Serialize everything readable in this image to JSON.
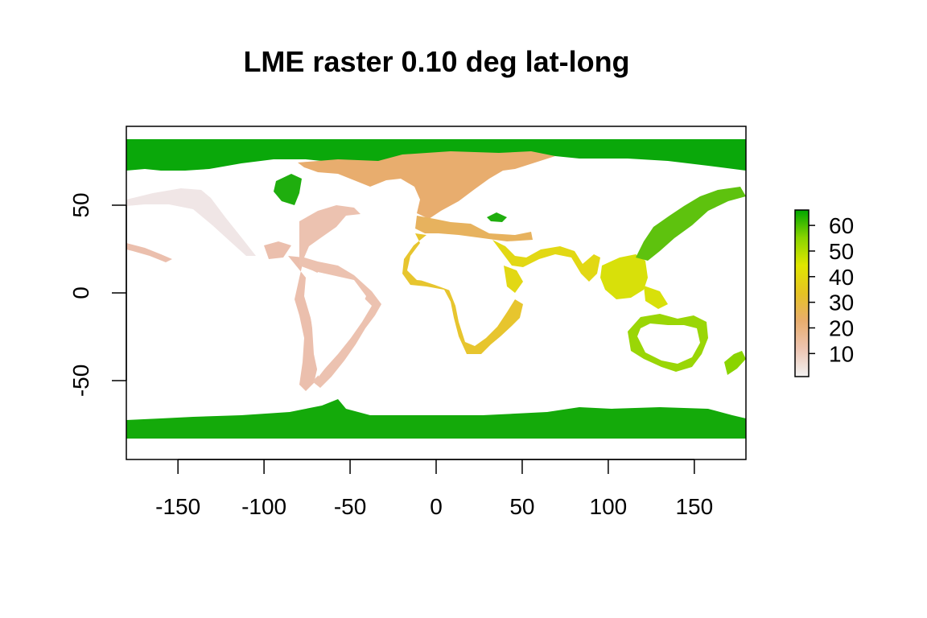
{
  "title": "LME raster 0.10 deg lat-long",
  "map": {
    "x_axis": {
      "range": [
        -180,
        180
      ],
      "ticks": [
        -150,
        -100,
        -50,
        0,
        50,
        100,
        150
      ],
      "tick_labels": [
        "-150",
        "-100",
        "-50",
        "0",
        "50",
        "100",
        "150"
      ]
    },
    "y_axis": {
      "range": [
        -95,
        95
      ],
      "ticks": [
        50,
        0,
        -50
      ],
      "tick_labels": [
        "50",
        "0",
        "-50"
      ]
    }
  },
  "legend": {
    "range": [
      1,
      66
    ],
    "ticks": [
      10,
      20,
      30,
      40,
      50,
      60
    ],
    "tick_labels": [
      "10",
      "20",
      "30",
      "40",
      "50",
      "60"
    ],
    "gradient_colors": [
      "#f2f2f2",
      "#edc4b1",
      "#e8ad6e",
      "#e6c324",
      "#e0e600",
      "#8ad400",
      "#00a600"
    ]
  },
  "colors": {
    "arctic": "#0aa80a",
    "antarctic": "#14aa0a",
    "north_pacific": "#f0e6e6",
    "americas_pacific": "#ebbfad",
    "americas_atlantic": "#ecc2b0",
    "north_atlantic": "#e8ad6e",
    "europe": "#e7b25e",
    "africa": "#e7c52e",
    "indian": "#e2d814",
    "se_asia": "#d8e00a",
    "east_asia": "#5ec20e",
    "australia": "#9ad606",
    "nz": "#8ad400",
    "hudson_baltic": "#1fae0e"
  }
}
